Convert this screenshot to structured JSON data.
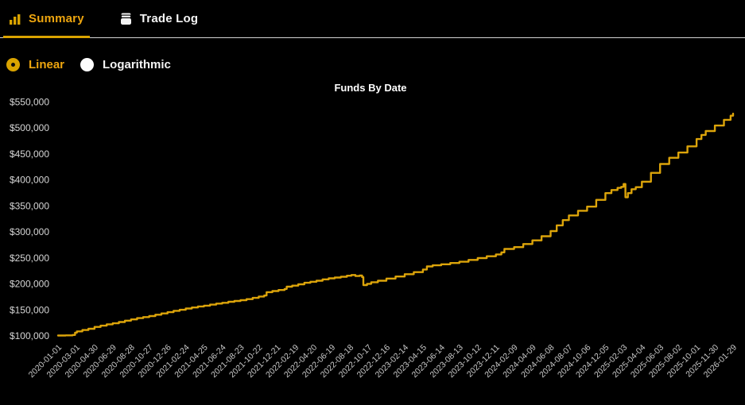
{
  "tabs": {
    "summary": {
      "label": "Summary",
      "icon": "bar-chart-icon",
      "active": true
    },
    "trade_log": {
      "label": "Trade Log",
      "icon": "trade-log-stack-icon",
      "active": false
    }
  },
  "scale_toggle": {
    "options": [
      {
        "label": "Linear",
        "selected": true
      },
      {
        "label": "Logarithmic",
        "selected": false
      }
    ]
  },
  "colors": {
    "background": "#000000",
    "accent_gold": "#D9A300",
    "active_text_gold": "#EDA50F",
    "line_gold": "#DCA40A",
    "axis_label_gray": "#CDCDCD",
    "white_text": "#F4F4F4",
    "tabbar_border": "#D4D4D4"
  },
  "chart_data": {
    "type": "line",
    "title": "Funds By Date",
    "xlabel": "",
    "ylabel": "",
    "grid": false,
    "legend": "none",
    "ylim": [
      100000,
      550000
    ],
    "y_ticks": [
      100000,
      150000,
      200000,
      250000,
      300000,
      350000,
      400000,
      450000,
      500000,
      550000
    ],
    "y_tick_format": "$#,###",
    "start_date": "2020-01-01",
    "x_tick_interval_days": 60,
    "x_tick_labels": [
      "2020-01-01",
      "2020-03-01",
      "2020-04-30",
      "2020-06-29",
      "2020-08-28",
      "2020-10-27",
      "2020-12-26",
      "2021-02-24",
      "2021-04-25",
      "2021-06-24",
      "2021-08-23",
      "2021-10-22",
      "2021-12-21",
      "2022-02-19",
      "2022-04-20",
      "2022-06-19",
      "2022-08-18",
      "2022-10-17",
      "2022-12-16",
      "2023-02-14",
      "2023-04-15",
      "2023-06-14",
      "2023-08-13",
      "2023-10-12",
      "2023-12-11",
      "2024-02-09",
      "2024-04-09",
      "2024-06-08",
      "2024-08-07",
      "2024-10-06",
      "2024-12-05",
      "2025-02-03",
      "2025-04-04",
      "2025-06-03",
      "2025-08-02",
      "2025-10-01",
      "2025-11-30",
      "2026-01-29"
    ],
    "series": [
      {
        "name": "Funds",
        "color": "#DCA40A",
        "points_format": "[days_since_start, usd_value]",
        "points": [
          [
            0,
            100000
          ],
          [
            25,
            100300
          ],
          [
            48,
            101000
          ],
          [
            56,
            105500
          ],
          [
            62,
            108000
          ],
          [
            80,
            110500
          ],
          [
            100,
            113000
          ],
          [
            120,
            116500
          ],
          [
            140,
            119000
          ],
          [
            160,
            121500
          ],
          [
            180,
            123500
          ],
          [
            200,
            126000
          ],
          [
            220,
            128500
          ],
          [
            240,
            131000
          ],
          [
            260,
            133500
          ],
          [
            280,
            135500
          ],
          [
            300,
            137500
          ],
          [
            320,
            140000
          ],
          [
            340,
            142500
          ],
          [
            360,
            145000
          ],
          [
            380,
            147500
          ],
          [
            400,
            149500
          ],
          [
            420,
            152000
          ],
          [
            440,
            154000
          ],
          [
            460,
            156000
          ],
          [
            480,
            157500
          ],
          [
            500,
            159500
          ],
          [
            520,
            161500
          ],
          [
            540,
            163000
          ],
          [
            560,
            165000
          ],
          [
            580,
            166500
          ],
          [
            600,
            168000
          ],
          [
            620,
            170000
          ],
          [
            640,
            172500
          ],
          [
            660,
            175000
          ],
          [
            678,
            177000
          ],
          [
            686,
            183500
          ],
          [
            705,
            185500
          ],
          [
            725,
            187500
          ],
          [
            745,
            189500
          ],
          [
            752,
            194000
          ],
          [
            770,
            196000
          ],
          [
            790,
            198500
          ],
          [
            810,
            201500
          ],
          [
            830,
            203500
          ],
          [
            850,
            205500
          ],
          [
            870,
            208000
          ],
          [
            890,
            210000
          ],
          [
            910,
            211500
          ],
          [
            930,
            213000
          ],
          [
            950,
            215000
          ],
          [
            965,
            216500
          ],
          [
            978,
            214500
          ],
          [
            992,
            215500
          ],
          [
            1000,
            212500
          ],
          [
            1004,
            197000
          ],
          [
            1016,
            199500
          ],
          [
            1030,
            202500
          ],
          [
            1052,
            205500
          ],
          [
            1080,
            209500
          ],
          [
            1110,
            213500
          ],
          [
            1140,
            218000
          ],
          [
            1170,
            222000
          ],
          [
            1200,
            227000
          ],
          [
            1213,
            233000
          ],
          [
            1232,
            235000
          ],
          [
            1260,
            237000
          ],
          [
            1290,
            239500
          ],
          [
            1320,
            242000
          ],
          [
            1350,
            245500
          ],
          [
            1380,
            249000
          ],
          [
            1410,
            252500
          ],
          [
            1440,
            256000
          ],
          [
            1458,
            260000
          ],
          [
            1468,
            266500
          ],
          [
            1500,
            270000
          ],
          [
            1530,
            276000
          ],
          [
            1560,
            283000
          ],
          [
            1590,
            291000
          ],
          [
            1620,
            301000
          ],
          [
            1640,
            312000
          ],
          [
            1660,
            322000
          ],
          [
            1680,
            331000
          ],
          [
            1710,
            340000
          ],
          [
            1740,
            348000
          ],
          [
            1770,
            361000
          ],
          [
            1800,
            374000
          ],
          [
            1820,
            380000
          ],
          [
            1840,
            384000
          ],
          [
            1852,
            386000
          ],
          [
            1860,
            391500
          ],
          [
            1866,
            366000
          ],
          [
            1874,
            374000
          ],
          [
            1886,
            381500
          ],
          [
            1900,
            385500
          ],
          [
            1920,
            396000
          ],
          [
            1950,
            413000
          ],
          [
            1980,
            430000
          ],
          [
            2010,
            442000
          ],
          [
            2040,
            452000
          ],
          [
            2070,
            464000
          ],
          [
            2100,
            478000
          ],
          [
            2116,
            486000
          ],
          [
            2130,
            493500
          ],
          [
            2160,
            504000
          ],
          [
            2190,
            515000
          ],
          [
            2212,
            523000
          ],
          [
            2220,
            527000
          ]
        ]
      }
    ]
  }
}
